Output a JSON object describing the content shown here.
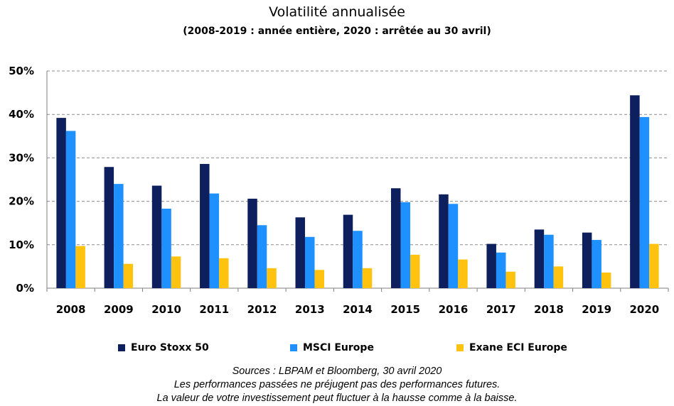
{
  "chart_data": {
    "type": "bar",
    "title": "Volatilité annualisée",
    "subtitle": "(2008-2019 : année entière, 2020 : arrêtée au 30 avril)",
    "categories": [
      "2008",
      "2009",
      "2010",
      "2011",
      "2012",
      "2013",
      "2014",
      "2015",
      "2016",
      "2017",
      "2018",
      "2019",
      "2020"
    ],
    "series": [
      {
        "name": "Euro Stoxx 50",
        "color": "#0d1f5c",
        "values": [
          39.2,
          27.9,
          23.6,
          28.6,
          20.6,
          16.3,
          16.9,
          23.0,
          21.6,
          10.2,
          13.5,
          12.8,
          44.4
        ]
      },
      {
        "name": "MSCI Europe",
        "color": "#1e90ff",
        "values": [
          36.2,
          24.0,
          18.3,
          21.8,
          14.5,
          11.8,
          13.2,
          19.8,
          19.4,
          8.2,
          12.3,
          11.1,
          39.4
        ]
      },
      {
        "name": "Exane ECI Europe",
        "color": "#ffc20e",
        "values": [
          9.7,
          5.6,
          7.3,
          6.9,
          4.6,
          4.2,
          4.6,
          7.7,
          6.6,
          3.8,
          5.0,
          3.6,
          10.2
        ]
      }
    ],
    "yticks": [
      "0%",
      "10%",
      "20%",
      "30%",
      "40%",
      "50%"
    ],
    "ylim": [
      0,
      50
    ],
    "grid": true,
    "legend": "bottom"
  },
  "notes": [
    "Sources : LBPAM et Bloomberg,  30 avril 2020",
    "Les performances passées ne préjugent pas des performances futures.",
    "La valeur de votre investissement peut fluctuer à la hausse comme à la baisse."
  ]
}
